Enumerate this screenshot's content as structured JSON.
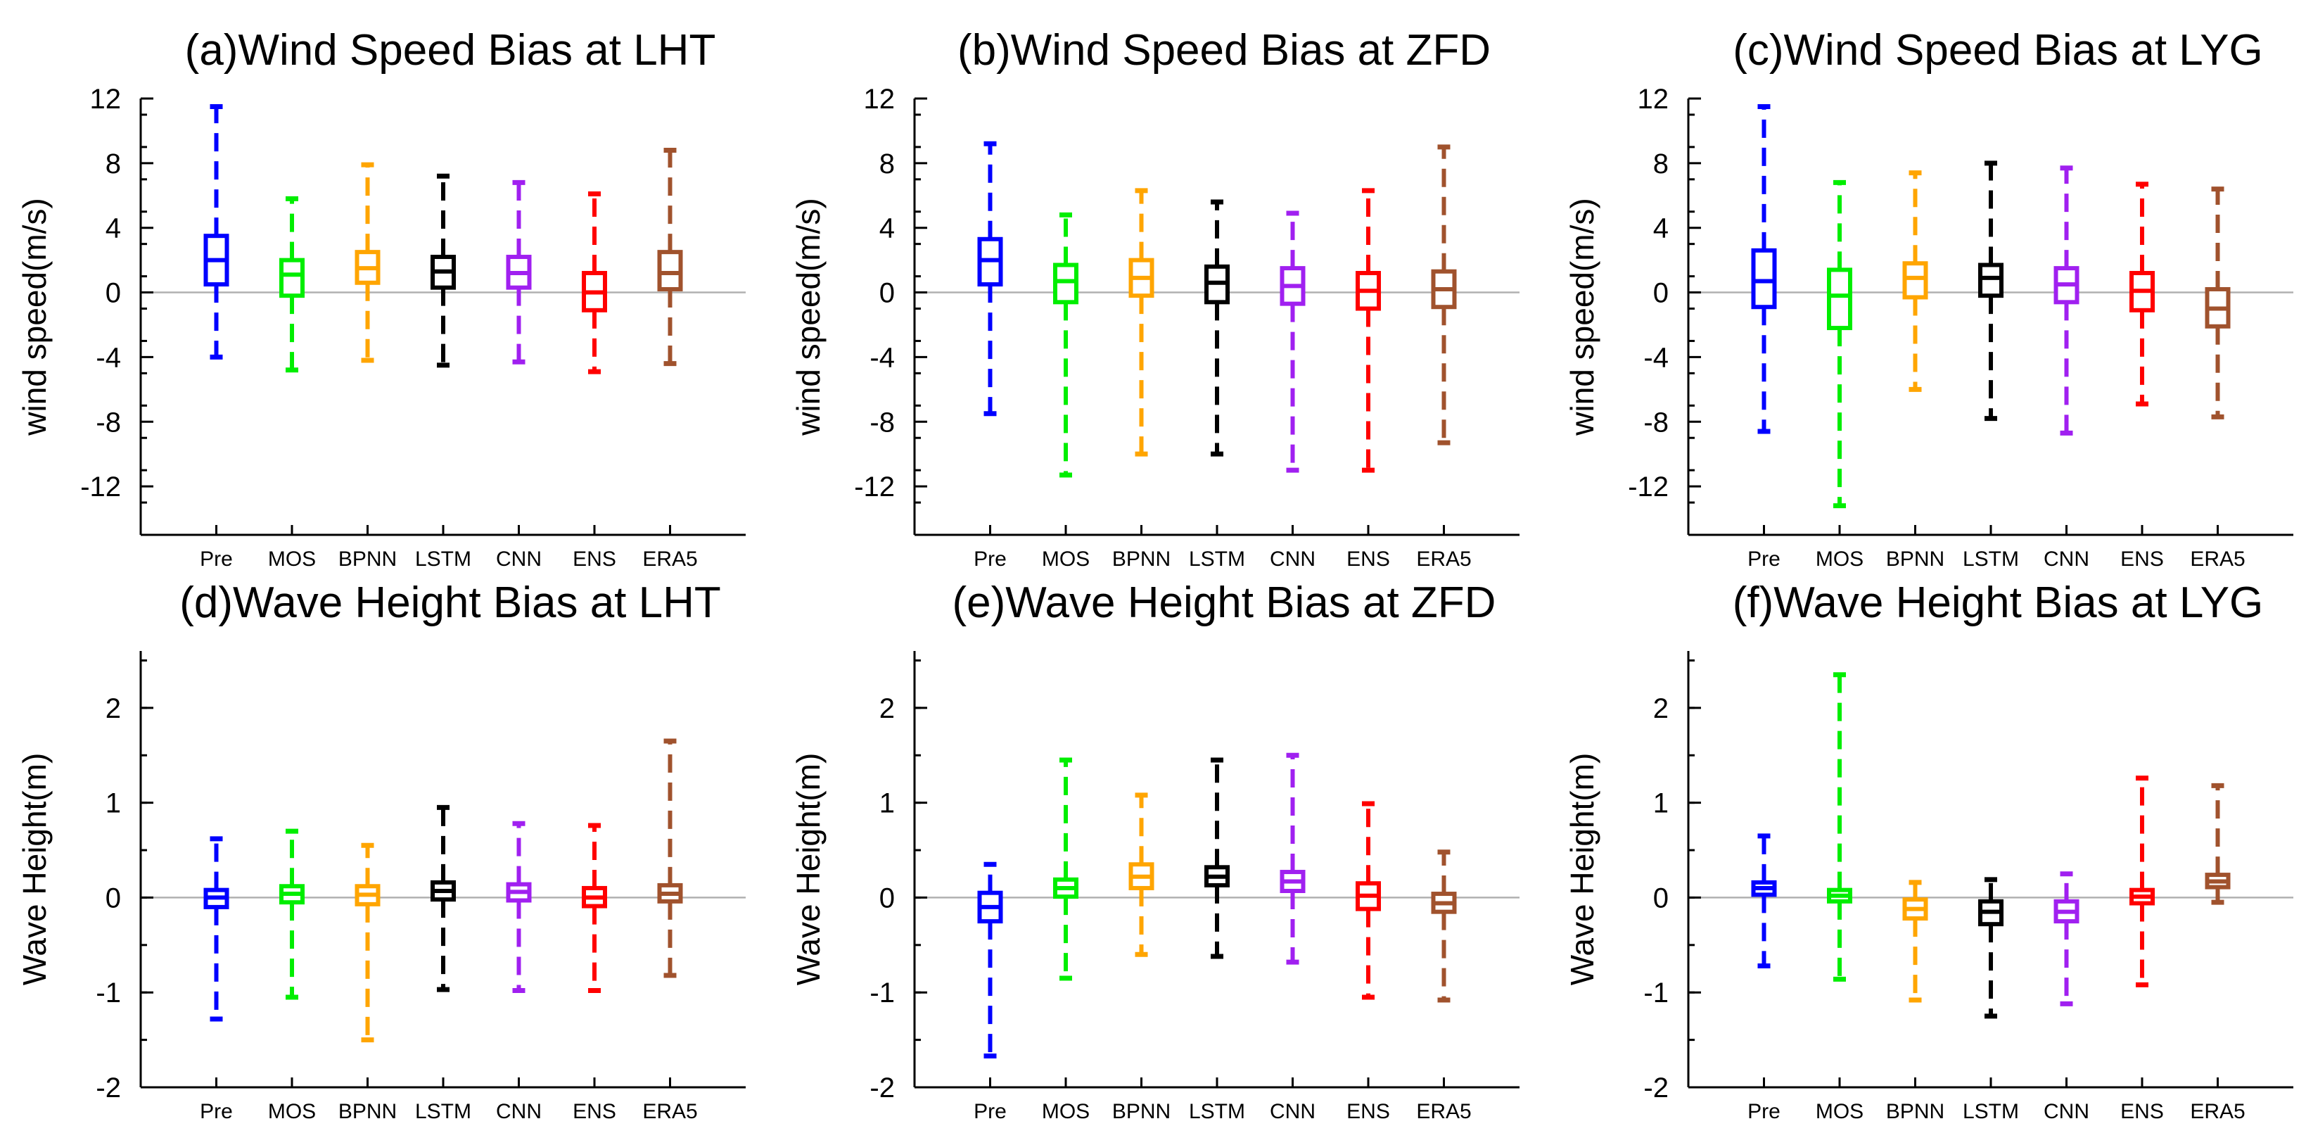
{
  "colors": {
    "Pre": "#0000ff",
    "MOS": "#00ee00",
    "BPNN": "#ffa500",
    "LSTM": "#000000",
    "CNN": "#a020f0",
    "ENS": "#ff0000",
    "ERA5": "#a0522d",
    "zero_line": "#b0b0b0"
  },
  "chart_data": [
    {
      "type": "box",
      "title": "(a)Wind Speed Bias at LHT",
      "ylabel": "wind speed(m/s)",
      "ylim": [
        -15,
        12
      ],
      "yticks": [
        12,
        8,
        4,
        0,
        -4,
        -8,
        -12
      ],
      "categories": [
        "Pre",
        "MOS",
        "BPNN",
        "LSTM",
        "CNN",
        "ENS",
        "ERA5"
      ],
      "boxes": [
        {
          "min": -4.0,
          "q1": 0.5,
          "median": 2.0,
          "q3": 3.5,
          "max": 11.5
        },
        {
          "min": -4.8,
          "q1": -0.2,
          "median": 1.1,
          "q3": 2.0,
          "max": 5.8
        },
        {
          "min": -4.2,
          "q1": 0.6,
          "median": 1.5,
          "q3": 2.5,
          "max": 7.9
        },
        {
          "min": -4.5,
          "q1": 0.3,
          "median": 1.3,
          "q3": 2.2,
          "max": 7.2
        },
        {
          "min": -4.3,
          "q1": 0.3,
          "median": 1.2,
          "q3": 2.2,
          "max": 6.8
        },
        {
          "min": -4.9,
          "q1": -1.1,
          "median": 0.0,
          "q3": 1.2,
          "max": 6.1
        },
        {
          "min": -4.4,
          "q1": 0.2,
          "median": 1.2,
          "q3": 2.5,
          "max": 8.8
        }
      ]
    },
    {
      "type": "box",
      "title": "(b)Wind Speed Bias at ZFD",
      "ylabel": "wind speed(m/s)",
      "ylim": [
        -15,
        12
      ],
      "yticks": [
        12,
        8,
        4,
        0,
        -4,
        -8,
        -12
      ],
      "categories": [
        "Pre",
        "MOS",
        "BPNN",
        "LSTM",
        "CNN",
        "ENS",
        "ERA5"
      ],
      "boxes": [
        {
          "min": -7.5,
          "q1": 0.5,
          "median": 2.0,
          "q3": 3.3,
          "max": 9.2
        },
        {
          "min": -11.3,
          "q1": -0.6,
          "median": 0.7,
          "q3": 1.7,
          "max": 4.8
        },
        {
          "min": -10.0,
          "q1": -0.2,
          "median": 0.9,
          "q3": 2.0,
          "max": 6.3
        },
        {
          "min": -10.0,
          "q1": -0.6,
          "median": 0.6,
          "q3": 1.6,
          "max": 5.6
        },
        {
          "min": -11.0,
          "q1": -0.7,
          "median": 0.4,
          "q3": 1.5,
          "max": 4.9
        },
        {
          "min": -11.0,
          "q1": -1.0,
          "median": 0.1,
          "q3": 1.2,
          "max": 6.3
        },
        {
          "min": -9.3,
          "q1": -0.9,
          "median": 0.2,
          "q3": 1.3,
          "max": 9.0
        }
      ]
    },
    {
      "type": "box",
      "title": "(c)Wind Speed Bias at LYG",
      "ylabel": "wind speed(m/s)",
      "ylim": [
        -15,
        12
      ],
      "yticks": [
        12,
        8,
        4,
        0,
        -4,
        -8,
        -12
      ],
      "categories": [
        "Pre",
        "MOS",
        "BPNN",
        "LSTM",
        "CNN",
        "ENS",
        "ERA5"
      ],
      "boxes": [
        {
          "min": -8.6,
          "q1": -0.9,
          "median": 0.7,
          "q3": 2.6,
          "max": 11.5
        },
        {
          "min": -13.2,
          "q1": -2.2,
          "median": -0.2,
          "q3": 1.4,
          "max": 6.8
        },
        {
          "min": -6.0,
          "q1": -0.3,
          "median": 0.9,
          "q3": 1.8,
          "max": 7.4
        },
        {
          "min": -7.8,
          "q1": -0.2,
          "median": 0.9,
          "q3": 1.7,
          "max": 8.0
        },
        {
          "min": -8.7,
          "q1": -0.6,
          "median": 0.5,
          "q3": 1.5,
          "max": 7.7
        },
        {
          "min": -6.9,
          "q1": -1.1,
          "median": 0.1,
          "q3": 1.2,
          "max": 6.7
        },
        {
          "min": -7.7,
          "q1": -2.1,
          "median": -1.0,
          "q3": 0.2,
          "max": 6.4
        }
      ]
    },
    {
      "type": "box",
      "title": "(d)Wave Height Bias at LHT",
      "ylabel": "Wave Height(m)",
      "ylim": [
        -2,
        2.6
      ],
      "yticks": [
        2,
        1,
        0,
        -1,
        -2
      ],
      "categories": [
        "Pre",
        "MOS",
        "BPNN",
        "LSTM",
        "CNN",
        "ENS",
        "ERA5"
      ],
      "boxes": [
        {
          "min": -1.28,
          "q1": -0.1,
          "median": 0.0,
          "q3": 0.08,
          "max": 0.62
        },
        {
          "min": -1.05,
          "q1": -0.05,
          "median": 0.04,
          "q3": 0.12,
          "max": 0.7
        },
        {
          "min": -1.5,
          "q1": -0.07,
          "median": 0.03,
          "q3": 0.12,
          "max": 0.55
        },
        {
          "min": -0.97,
          "q1": -0.02,
          "median": 0.07,
          "q3": 0.16,
          "max": 0.95
        },
        {
          "min": -0.98,
          "q1": -0.03,
          "median": 0.06,
          "q3": 0.14,
          "max": 0.78
        },
        {
          "min": -0.98,
          "q1": -0.09,
          "median": 0.0,
          "q3": 0.1,
          "max": 0.76
        },
        {
          "min": -0.82,
          "q1": -0.04,
          "median": 0.04,
          "q3": 0.13,
          "max": 1.65
        }
      ]
    },
    {
      "type": "box",
      "title": "(e)Wave Height Bias at ZFD",
      "ylabel": "Wave Height(m)",
      "ylim": [
        -2,
        2.6
      ],
      "yticks": [
        2,
        1,
        0,
        -1,
        -2
      ],
      "categories": [
        "Pre",
        "MOS",
        "BPNN",
        "LSTM",
        "CNN",
        "ENS",
        "ERA5"
      ],
      "boxes": [
        {
          "min": -1.67,
          "q1": -0.25,
          "median": -0.1,
          "q3": 0.05,
          "max": 0.35
        },
        {
          "min": -0.85,
          "q1": 0.01,
          "median": 0.1,
          "q3": 0.19,
          "max": 1.45
        },
        {
          "min": -0.6,
          "q1": 0.1,
          "median": 0.22,
          "q3": 0.35,
          "max": 1.08
        },
        {
          "min": -0.62,
          "q1": 0.13,
          "median": 0.22,
          "q3": 0.32,
          "max": 1.45
        },
        {
          "min": -0.68,
          "q1": 0.07,
          "median": 0.17,
          "q3": 0.27,
          "max": 1.5
        },
        {
          "min": -1.05,
          "q1": -0.12,
          "median": 0.02,
          "q3": 0.15,
          "max": 0.99
        },
        {
          "min": -1.08,
          "q1": -0.15,
          "median": -0.06,
          "q3": 0.04,
          "max": 0.48
        }
      ]
    },
    {
      "type": "box",
      "title": "(f)Wave Height Bias at LYG",
      "ylabel": "Wave Height(m)",
      "ylim": [
        -2,
        2.6
      ],
      "yticks": [
        2,
        1,
        0,
        -1,
        -2
      ],
      "categories": [
        "Pre",
        "MOS",
        "BPNN",
        "LSTM",
        "CNN",
        "ENS",
        "ERA5"
      ],
      "boxes": [
        {
          "min": -0.72,
          "q1": 0.03,
          "median": 0.1,
          "q3": 0.16,
          "max": 0.65
        },
        {
          "min": -0.86,
          "q1": -0.04,
          "median": 0.02,
          "q3": 0.08,
          "max": 2.35
        },
        {
          "min": -1.08,
          "q1": -0.22,
          "median": -0.12,
          "q3": -0.02,
          "max": 0.16
        },
        {
          "min": -1.25,
          "q1": -0.28,
          "median": -0.15,
          "q3": -0.04,
          "max": 0.19
        },
        {
          "min": -1.12,
          "q1": -0.25,
          "median": -0.15,
          "q3": -0.04,
          "max": 0.25
        },
        {
          "min": -0.92,
          "q1": -0.06,
          "median": 0.01,
          "q3": 0.08,
          "max": 1.26
        },
        {
          "min": -0.05,
          "q1": 0.11,
          "median": 0.17,
          "q3": 0.24,
          "max": 1.18
        }
      ]
    }
  ]
}
